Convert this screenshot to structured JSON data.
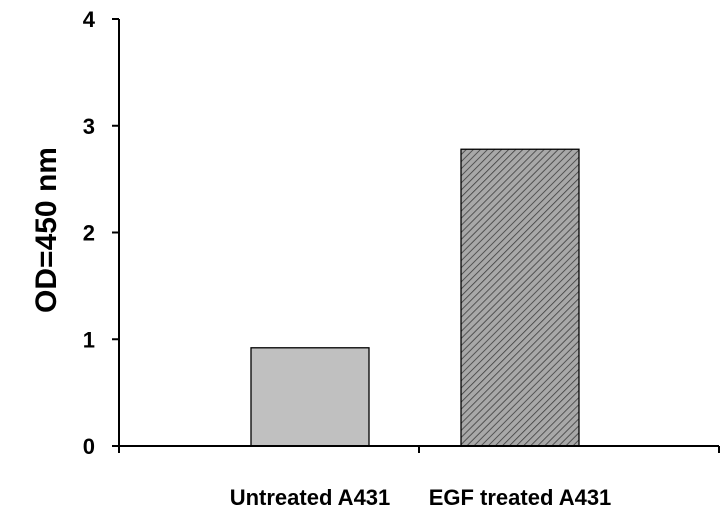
{
  "chart_data": {
    "type": "bar",
    "title": "",
    "xlabel": "",
    "ylabel": "OD=450 nm",
    "categories": [
      "Untreated A431",
      "EGF treated A431"
    ],
    "values": [
      0.92,
      2.78
    ],
    "ylim": [
      0,
      4
    ],
    "yticks": [
      "0",
      "1",
      "2",
      "3",
      "4"
    ],
    "grid": false,
    "legend": "none",
    "bar_styles": [
      {
        "fill": "#c0c0c0",
        "pattern": "solid"
      },
      {
        "fill": "#a8a8a8",
        "pattern": "diagonal-hatch"
      }
    ]
  }
}
